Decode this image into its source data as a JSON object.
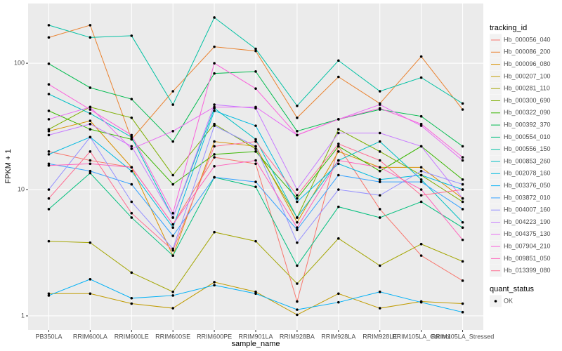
{
  "chart_data": {
    "type": "line",
    "x_label": "sample_name",
    "y_label": "FPKM + 1",
    "categories": [
      "PB350LA",
      "RRIM600LA",
      "RRIM600LE",
      "RRIM600SE",
      "RRIM600PE",
      "RRIM901LA",
      "RRIM928BA",
      "RRIM928LA",
      "RRIM928LE",
      "RRIM105LA_Control",
      "RRIM105LA_Stressed"
    ],
    "log_y": true,
    "ylim": [
      0.774,
      297
    ],
    "yticks": [
      1,
      10,
      100
    ],
    "grid": true,
    "point_color": "#000000",
    "legend_title": "tracking_id",
    "legend2_title": "quant_status",
    "legend2_entries": [
      "OK"
    ],
    "series": [
      {
        "name": "Hb_000056_040",
        "color": "#F8766D",
        "values": [
          20,
          17,
          15,
          5.3,
          18,
          16,
          1.3,
          22,
          7,
          3,
          1.9
        ]
      },
      {
        "name": "Hb_000086_200",
        "color": "#EA8331",
        "values": [
          160,
          200,
          25,
          60,
          135,
          125,
          37,
          78,
          48,
          113,
          43
        ]
      },
      {
        "name": "Hb_000096_080",
        "color": "#D89000",
        "values": [
          29,
          35,
          15,
          3,
          24,
          22,
          5.5,
          20,
          15,
          15,
          8.5
        ]
      },
      {
        "name": "Hb_000207_100",
        "color": "#C09B00",
        "values": [
          1.5,
          1.5,
          1.25,
          1.15,
          1.85,
          1.55,
          1.02,
          1.5,
          1.15,
          1.3,
          1.25
        ]
      },
      {
        "name": "Hb_000281_110",
        "color": "#A3A500",
        "values": [
          3.9,
          3.8,
          2.2,
          1.55,
          4.6,
          3.9,
          1.8,
          4.1,
          2.5,
          3.7,
          2.7
        ]
      },
      {
        "name": "Hb_000300_690",
        "color": "#7CAE00",
        "values": [
          30,
          45,
          37,
          13,
          33,
          21,
          6,
          30,
          20,
          13,
          8
        ]
      },
      {
        "name": "Hb_000322_090",
        "color": "#39B600",
        "values": [
          42,
          30,
          25,
          11,
          19,
          20,
          8.5,
          22,
          14,
          22,
          12
        ]
      },
      {
        "name": "Hb_000392_370",
        "color": "#00BB4E",
        "values": [
          99,
          64,
          52,
          24,
          83,
          86,
          29,
          36,
          43,
          38,
          22
        ]
      },
      {
        "name": "Hb_000554_010",
        "color": "#00BF7D",
        "values": [
          7,
          13.5,
          6,
          3,
          12.5,
          10.5,
          2.5,
          7.3,
          6,
          8,
          5
        ]
      },
      {
        "name": "Hb_000556_150",
        "color": "#00C1A3",
        "values": [
          200,
          160,
          165,
          47,
          230,
          130,
          46,
          105,
          60,
          77,
          48
        ]
      },
      {
        "name": "Hb_000853_260",
        "color": "#00BFC4",
        "values": [
          57,
          40,
          26,
          6,
          44,
          25,
          6,
          17,
          24,
          12,
          5.5
        ]
      },
      {
        "name": "Hb_002078_160",
        "color": "#00BAE0",
        "values": [
          19,
          26,
          14,
          5,
          42,
          32,
          8,
          16,
          12,
          13,
          10
        ]
      },
      {
        "name": "Hb_003376_050",
        "color": "#00B0F6",
        "values": [
          1.45,
          1.95,
          1.38,
          1.45,
          1.75,
          1.5,
          1.12,
          1.28,
          1.55,
          1.28,
          1.07
        ]
      },
      {
        "name": "Hb_003872_010",
        "color": "#35A2FF",
        "values": [
          16,
          14,
          11,
          4.3,
          12.5,
          11.5,
          4.8,
          13,
          11.5,
          11.5,
          7
        ]
      },
      {
        "name": "Hb_004007_160",
        "color": "#9590FF",
        "values": [
          10,
          26,
          8,
          3.4,
          32,
          22,
          3.8,
          10,
          9,
          14,
          11
        ]
      },
      {
        "name": "Hb_004223_190",
        "color": "#C77CFF",
        "values": [
          27,
          33,
          22,
          6,
          47,
          44,
          10,
          28,
          28,
          22,
          8.5
        ]
      },
      {
        "name": "Hb_004375_130",
        "color": "#E76BF3",
        "values": [
          36,
          45,
          21,
          29,
          45,
          45,
          27,
          36,
          47,
          32,
          17
        ]
      },
      {
        "name": "Hb_007904_210",
        "color": "#FA62DB",
        "values": [
          68,
          43,
          27,
          6.5,
          100,
          63,
          27,
          36,
          44,
          33,
          18
        ]
      },
      {
        "name": "Hb_009851_050",
        "color": "#FF62BC",
        "values": [
          15.5,
          16,
          15,
          5.3,
          15.3,
          17,
          5,
          17,
          15,
          10,
          4
        ]
      },
      {
        "name": "Hb_013399_080",
        "color": "#FF6C91",
        "values": [
          8.5,
          20,
          6.5,
          3.3,
          22,
          24,
          9,
          23,
          17,
          9,
          10
        ]
      }
    ]
  }
}
